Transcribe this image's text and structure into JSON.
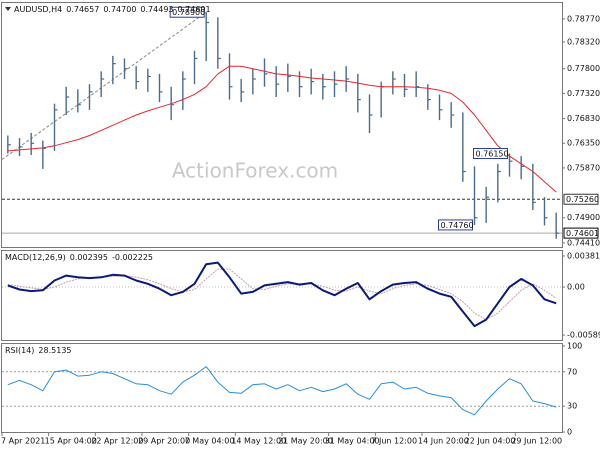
{
  "chart_data": [
    {
      "type": "ohlc",
      "title": "AUDUSD,H4",
      "quote": [
        0.74657,
        {
          "value": 0.747,
          "label": "0.74700"
        },
        0.74493,
        0.74601
      ],
      "watermark": "ActionForex.com",
      "categories": [
        "7 Apr 2021",
        null,
        null,
        null,
        "15 Apr 04:00",
        null,
        null,
        null,
        "22 Apr 12:00",
        null,
        null,
        null,
        "29 Apr 20:00",
        null,
        null,
        null,
        "7 May 04:00",
        null,
        null,
        null,
        "14 May 12:00",
        null,
        null,
        null,
        "21 May 20:00",
        null,
        null,
        null,
        "31 May 04:00",
        null,
        null,
        null,
        "7 Jun 12:00",
        null,
        null,
        null,
        "14 Jun 20:00",
        null,
        null,
        null,
        "22 Jun 04:00",
        null,
        null,
        null,
        "29 Jun 12:00",
        null,
        null,
        null
      ],
      "color": "#4a6b8a",
      "high": [
        0.765,
        0.7645,
        0.7655,
        0.764,
        0.7712,
        0.7745,
        0.774,
        0.775,
        0.7775,
        0.7805,
        0.78,
        0.7785,
        0.778,
        0.777,
        0.7745,
        0.7775,
        0.7815,
        0.789,
        0.788,
        0.781,
        0.776,
        0.778,
        0.78,
        0.7785,
        0.779,
        0.7775,
        0.778,
        0.777,
        0.7775,
        0.7785,
        0.777,
        0.773,
        0.7755,
        0.7775,
        0.777,
        0.7775,
        0.775,
        0.773,
        0.7715,
        0.7695,
        0.759,
        0.755,
        0.7595,
        0.7615,
        0.761,
        0.7595,
        0.753,
        0.75
      ],
      "low": [
        0.7615,
        0.761,
        0.7612,
        0.7585,
        0.762,
        0.769,
        0.7695,
        0.77,
        0.7725,
        0.775,
        0.776,
        0.774,
        0.7735,
        0.7715,
        0.768,
        0.77,
        0.775,
        0.7795,
        0.778,
        0.772,
        0.7715,
        0.773,
        0.7745,
        0.7725,
        0.7735,
        0.7725,
        0.773,
        0.772,
        0.7725,
        0.7735,
        0.7695,
        0.7655,
        0.7685,
        0.773,
        0.7725,
        0.7725,
        0.77,
        0.768,
        0.7665,
        0.756,
        0.7476,
        0.748,
        0.752,
        0.757,
        0.7565,
        0.7505,
        0.7475,
        0.7449
      ],
      "close": [
        0.7632,
        0.7628,
        0.7635,
        0.7625,
        0.77,
        0.7725,
        0.771,
        0.7735,
        0.776,
        0.779,
        0.778,
        0.7755,
        0.7765,
        0.7735,
        0.771,
        0.776,
        0.78,
        0.787,
        0.78,
        0.7745,
        0.7735,
        0.776,
        0.777,
        0.775,
        0.7765,
        0.7745,
        0.7755,
        0.7745,
        0.775,
        0.776,
        0.772,
        0.769,
        0.7745,
        0.776,
        0.774,
        0.7745,
        0.772,
        0.77,
        0.769,
        0.758,
        0.749,
        0.753,
        0.758,
        0.76,
        0.759,
        0.752,
        0.749,
        0.746
      ],
      "ma": {
        "color": "#e8262e",
        "values": [
          0.762,
          0.7622,
          0.7624,
          0.7626,
          0.763,
          0.7636,
          0.7642,
          0.765,
          0.766,
          0.767,
          0.768,
          0.769,
          0.7698,
          0.7705,
          0.7712,
          0.772,
          0.773,
          0.7745,
          0.777,
          0.7785,
          0.7785,
          0.778,
          0.7775,
          0.777,
          0.7768,
          0.7765,
          0.7762,
          0.776,
          0.7758,
          0.7756,
          0.7752,
          0.7748,
          0.7745,
          0.7745,
          0.7745,
          0.7744,
          0.7742,
          0.7738,
          0.7732,
          0.7715,
          0.769,
          0.766,
          0.763,
          0.761,
          0.7595,
          0.758,
          0.756,
          0.754
        ]
      },
      "annotations": [
        {
          "value": 0.789,
          "label": "0.78900"
        },
        {
          "value": 0.7476,
          "label": "0.74760"
        },
        {
          "value": 0.7615,
          "label": "0.76150"
        }
      ],
      "levels": [
        {
          "value": 0.7526,
          "label": "0.75260"
        }
      ],
      "ylim": [
        0.7435,
        0.7906
      ],
      "yticks": [
        {
          "value": 0.7877,
          "label": "0.78770"
        },
        {
          "value": 0.7832,
          "label": "0.78320"
        },
        {
          "value": 0.778,
          "label": "0.77800"
        },
        {
          "value": 0.7732,
          "label": "0.77320"
        },
        {
          "value": 0.7683,
          "label": "0.76830"
        },
        {
          "value": 0.7635,
          "label": "0.76350"
        },
        {
          "value": 0.7587,
          "label": "0.75870"
        },
        {
          "value": 0.749,
          "label": "0.74900"
        },
        {
          "value": 0.7441,
          "label": "0.74410"
        }
      ]
    },
    {
      "type": "macd",
      "title": "MACD(12,26,9)",
      "readings": [
        0.002395,
        -0.002225
      ],
      "color": "#0b1a7a",
      "signal_color": "#c8a0a8",
      "macd": [
        0.0002,
        -0.0003,
        -0.0005,
        -0.0004,
        0.0008,
        0.0014,
        0.0012,
        0.0011,
        0.0012,
        0.0015,
        0.0014,
        0.0008,
        0.0004,
        -0.0002,
        -0.001,
        -0.0006,
        0.0004,
        0.0028,
        0.003,
        0.0012,
        -0.0008,
        -0.0006,
        0.0002,
        0.0004,
        0.0006,
        0.0003,
        0.0005,
        -0.0004,
        -0.001,
        -0.0002,
        0.0005,
        -0.0015,
        -0.0005,
        0.0003,
        0.0005,
        0.0006,
        -0.0002,
        -0.0008,
        -0.0012,
        -0.003,
        -0.0048,
        -0.004,
        -0.002,
        0.0,
        0.001,
        0.0002,
        -0.0015,
        -0.002
      ],
      "signal": [
        0.0003,
        0.0001,
        -0.0001,
        -0.0003,
        0.0,
        0.0006,
        0.001,
        0.0012,
        0.0012,
        0.0013,
        0.0014,
        0.0012,
        0.0009,
        0.0004,
        -0.0002,
        -0.0006,
        -0.0003,
        0.001,
        0.0022,
        0.0022,
        0.001,
        -0.0002,
        -0.0003,
        0.0001,
        0.0004,
        0.0004,
        0.0004,
        0.0001,
        -0.0004,
        -0.0005,
        0.0,
        -0.0005,
        -0.0008,
        -0.0002,
        0.0002,
        0.0004,
        0.0002,
        -0.0003,
        -0.0008,
        -0.0018,
        -0.0032,
        -0.004,
        -0.0032,
        -0.0018,
        -0.0004,
        0.0004,
        -0.0004,
        -0.0014
      ],
      "ylim": [
        -0.0065,
        0.0043
      ],
      "yticks": [
        0.003814,
        {
          "value": 0,
          "label": "0.00"
        },
        -0.005895
      ]
    },
    {
      "type": "rsi",
      "title": "RSI(14)",
      "readings": [
        28.5135
      ],
      "color": "#2a8ee0",
      "values": [
        55,
        60,
        55,
        48,
        70,
        72,
        65,
        66,
        70,
        68,
        62,
        56,
        55,
        48,
        44,
        58,
        66,
        76,
        58,
        46,
        45,
        55,
        56,
        50,
        55,
        48,
        52,
        47,
        50,
        56,
        44,
        38,
        56,
        58,
        50,
        52,
        45,
        42,
        40,
        26,
        20,
        36,
        50,
        62,
        56,
        36,
        33,
        29
      ],
      "ylim": [
        0,
        100
      ],
      "yticks": [
        100,
        70,
        30,
        0
      ]
    }
  ]
}
